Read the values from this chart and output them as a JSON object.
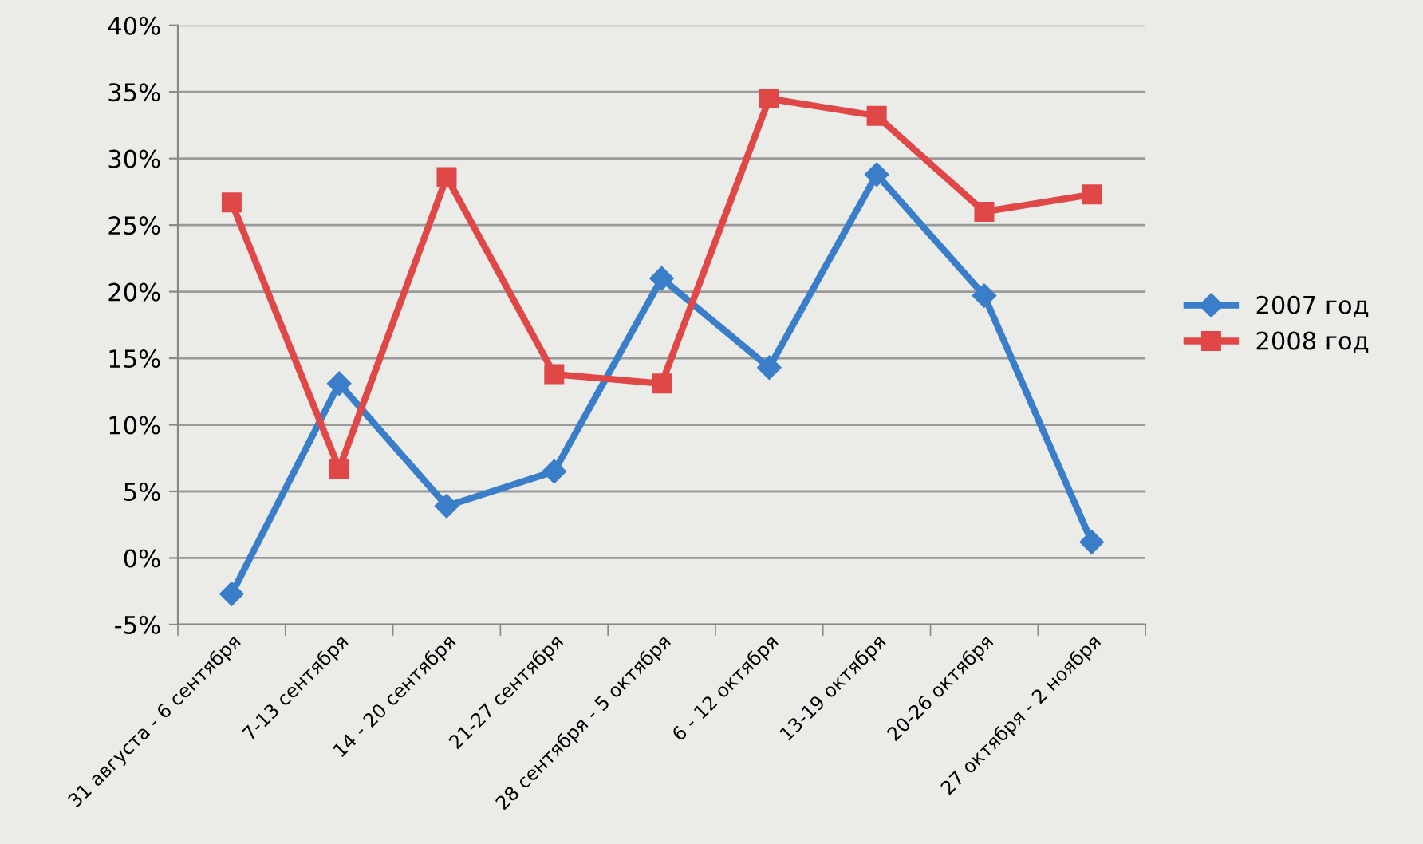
{
  "chart_data": {
    "type": "line",
    "categories": [
      "31 августа - 6 сентября",
      "7-13 сентября",
      "14 - 20 сентября",
      "21-27 сентября",
      "28 сентября - 5 октября",
      "6 - 12 октября",
      "13-19 октября",
      "20-26 октября",
      "27 октября - 2 ноября"
    ],
    "series": [
      {
        "name": "2007 год",
        "color": "#3a7dc9",
        "marker": "diamond",
        "values": [
          -2.7,
          13.1,
          3.9,
          6.5,
          21.0,
          14.3,
          28.8,
          19.7,
          1.2
        ]
      },
      {
        "name": "2008 год",
        "color": "#e04848",
        "marker": "square",
        "values": [
          26.7,
          6.7,
          28.6,
          13.8,
          13.1,
          34.5,
          33.2,
          26.0,
          27.3
        ]
      }
    ],
    "ylim": [
      -5,
      40
    ],
    "yticks": [
      {
        "value": -5,
        "label": "-5%"
      },
      {
        "value": 0,
        "label": "0%"
      },
      {
        "value": 5,
        "label": "5%"
      },
      {
        "value": 10,
        "label": "10%"
      },
      {
        "value": 15,
        "label": "15%"
      },
      {
        "value": 20,
        "label": "20%"
      },
      {
        "value": 25,
        "label": "25%"
      },
      {
        "value": 30,
        "label": "30%"
      },
      {
        "value": 35,
        "label": "35%"
      },
      {
        "value": 40,
        "label": "40%"
      }
    ],
    "grid": "y",
    "legend": "right",
    "line_style": "solid"
  }
}
